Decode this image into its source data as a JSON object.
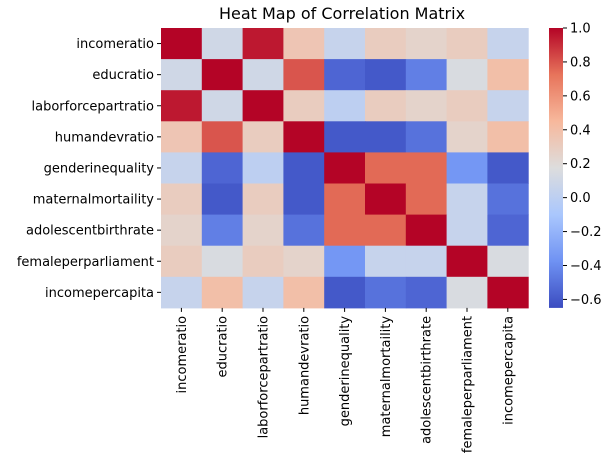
{
  "chart_data": {
    "type": "heatmap",
    "title": "Heat Map of Correlation Matrix",
    "rows": [
      "incomeratio",
      "educratio",
      "laborforcepartratio",
      "humandevratio",
      "genderinequality",
      "maternalmortaility",
      "adolescentbirthrate",
      "femaleperparliament",
      "incomepercapita"
    ],
    "columns": [
      "incomeratio",
      "educratio",
      "laborforcepartratio",
      "humandevratio",
      "genderinequality",
      "maternalmortaility",
      "adolescentbirthrate",
      "femaleperparliament",
      "incomepercapita"
    ],
    "values": [
      [
        1.0,
        0.1,
        0.95,
        0.35,
        0.05,
        0.3,
        0.25,
        0.3,
        0.05
      ],
      [
        0.1,
        1.0,
        0.1,
        0.8,
        -0.55,
        -0.6,
        -0.45,
        0.15,
        0.4
      ],
      [
        0.95,
        0.1,
        1.0,
        0.3,
        0.0,
        0.3,
        0.25,
        0.3,
        0.05
      ],
      [
        0.35,
        0.8,
        0.3,
        1.0,
        -0.6,
        -0.6,
        -0.5,
        0.25,
        0.4
      ],
      [
        0.05,
        -0.55,
        0.0,
        -0.6,
        1.0,
        0.75,
        0.75,
        -0.35,
        -0.6
      ],
      [
        0.3,
        -0.6,
        0.3,
        -0.6,
        0.75,
        1.0,
        0.75,
        0.05,
        -0.5
      ],
      [
        0.25,
        -0.45,
        0.25,
        -0.5,
        0.75,
        0.75,
        1.0,
        0.05,
        -0.55
      ],
      [
        0.3,
        0.15,
        0.3,
        0.25,
        -0.35,
        0.05,
        0.05,
        1.0,
        0.15
      ],
      [
        0.05,
        0.4,
        0.05,
        0.4,
        -0.6,
        -0.5,
        -0.55,
        0.15,
        1.0
      ]
    ],
    "colorbar": {
      "min": -0.65,
      "max": 1.0,
      "ticks": [
        1.0,
        0.8,
        0.6,
        0.4,
        0.2,
        0.0,
        -0.2,
        -0.4,
        -0.6
      ],
      "tick_labels": [
        "1.0",
        "0.8",
        "0.6",
        "0.4",
        "0.2",
        "0.0",
        "−0.2",
        "−0.4",
        "−0.6"
      ],
      "colormap": "coolwarm",
      "stops": [
        "#3b4cc0",
        "#6f92f3",
        "#aac7fd",
        "#dddddd",
        "#f7b89c",
        "#e7745b",
        "#b40426"
      ]
    }
  }
}
